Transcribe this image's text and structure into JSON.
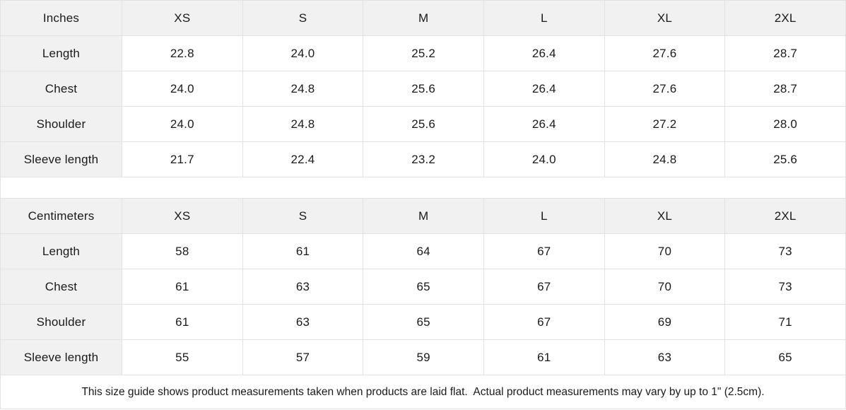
{
  "colors": {
    "header_bg": "#f1f1f1",
    "border": "#e2e2e2",
    "text": "#1a1a1a"
  },
  "tables": [
    {
      "unit_label": "Inches",
      "sizes": [
        "XS",
        "S",
        "M",
        "L",
        "XL",
        "2XL"
      ],
      "rows": [
        {
          "label": "Length",
          "values": [
            "22.8",
            "24.0",
            "25.2",
            "26.4",
            "27.6",
            "28.7"
          ]
        },
        {
          "label": "Chest",
          "values": [
            "24.0",
            "24.8",
            "25.6",
            "26.4",
            "27.6",
            "28.7"
          ]
        },
        {
          "label": "Shoulder",
          "values": [
            "24.0",
            "24.8",
            "25.6",
            "26.4",
            "27.2",
            "28.0"
          ]
        },
        {
          "label": "Sleeve length",
          "values": [
            "21.7",
            "22.4",
            "23.2",
            "24.0",
            "24.8",
            "25.6"
          ]
        }
      ]
    },
    {
      "unit_label": "Centimeters",
      "sizes": [
        "XS",
        "S",
        "M",
        "L",
        "XL",
        "2XL"
      ],
      "rows": [
        {
          "label": "Length",
          "values": [
            "58",
            "61",
            "64",
            "67",
            "70",
            "73"
          ]
        },
        {
          "label": "Chest",
          "values": [
            "61",
            "63",
            "65",
            "67",
            "70",
            "73"
          ]
        },
        {
          "label": "Shoulder",
          "values": [
            "61",
            "63",
            "65",
            "67",
            "69",
            "71"
          ]
        },
        {
          "label": "Sleeve length",
          "values": [
            "55",
            "57",
            "59",
            "61",
            "63",
            "65"
          ]
        }
      ]
    }
  ],
  "footer": {
    "note": "This size guide shows product measurements taken when products are laid flat.  Actual product measurements may vary by up to 1\" (2.5cm)."
  }
}
